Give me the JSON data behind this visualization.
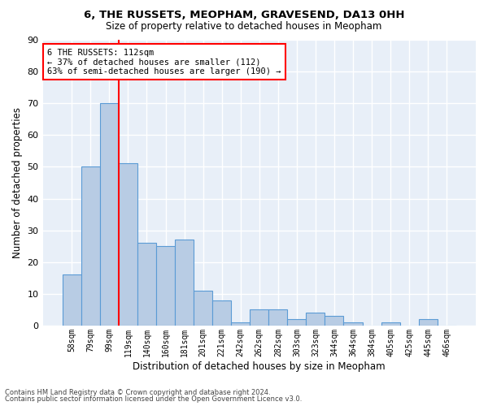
{
  "title_line1": "6, THE RUSSETS, MEOPHAM, GRAVESEND, DA13 0HH",
  "title_line2": "Size of property relative to detached houses in Meopham",
  "xlabel": "Distribution of detached houses by size in Meopham",
  "ylabel": "Number of detached properties",
  "categories": [
    "58sqm",
    "79sqm",
    "99sqm",
    "119sqm",
    "140sqm",
    "160sqm",
    "181sqm",
    "201sqm",
    "221sqm",
    "242sqm",
    "262sqm",
    "282sqm",
    "303sqm",
    "323sqm",
    "344sqm",
    "364sqm",
    "384sqm",
    "405sqm",
    "425sqm",
    "445sqm",
    "466sqm"
  ],
  "values": [
    16,
    50,
    70,
    51,
    26,
    25,
    27,
    11,
    8,
    1,
    5,
    5,
    2,
    4,
    3,
    1,
    0,
    1,
    0,
    2,
    0
  ],
  "bar_color": "#b8cce4",
  "bar_edge_color": "#5b9bd5",
  "annotation_text": "6 THE RUSSETS: 112sqm\n← 37% of detached houses are smaller (112)\n63% of semi-detached houses are larger (190) →",
  "annotation_box_color": "white",
  "annotation_box_edge_color": "red",
  "vline_color": "red",
  "vline_x_index": 2.5,
  "ylim": [
    0,
    90
  ],
  "yticks": [
    0,
    10,
    20,
    30,
    40,
    50,
    60,
    70,
    80,
    90
  ],
  "background_color": "#e8eff8",
  "grid_color": "white",
  "footer_line1": "Contains HM Land Registry data © Crown copyright and database right 2024.",
  "footer_line2": "Contains public sector information licensed under the Open Government Licence v3.0."
}
